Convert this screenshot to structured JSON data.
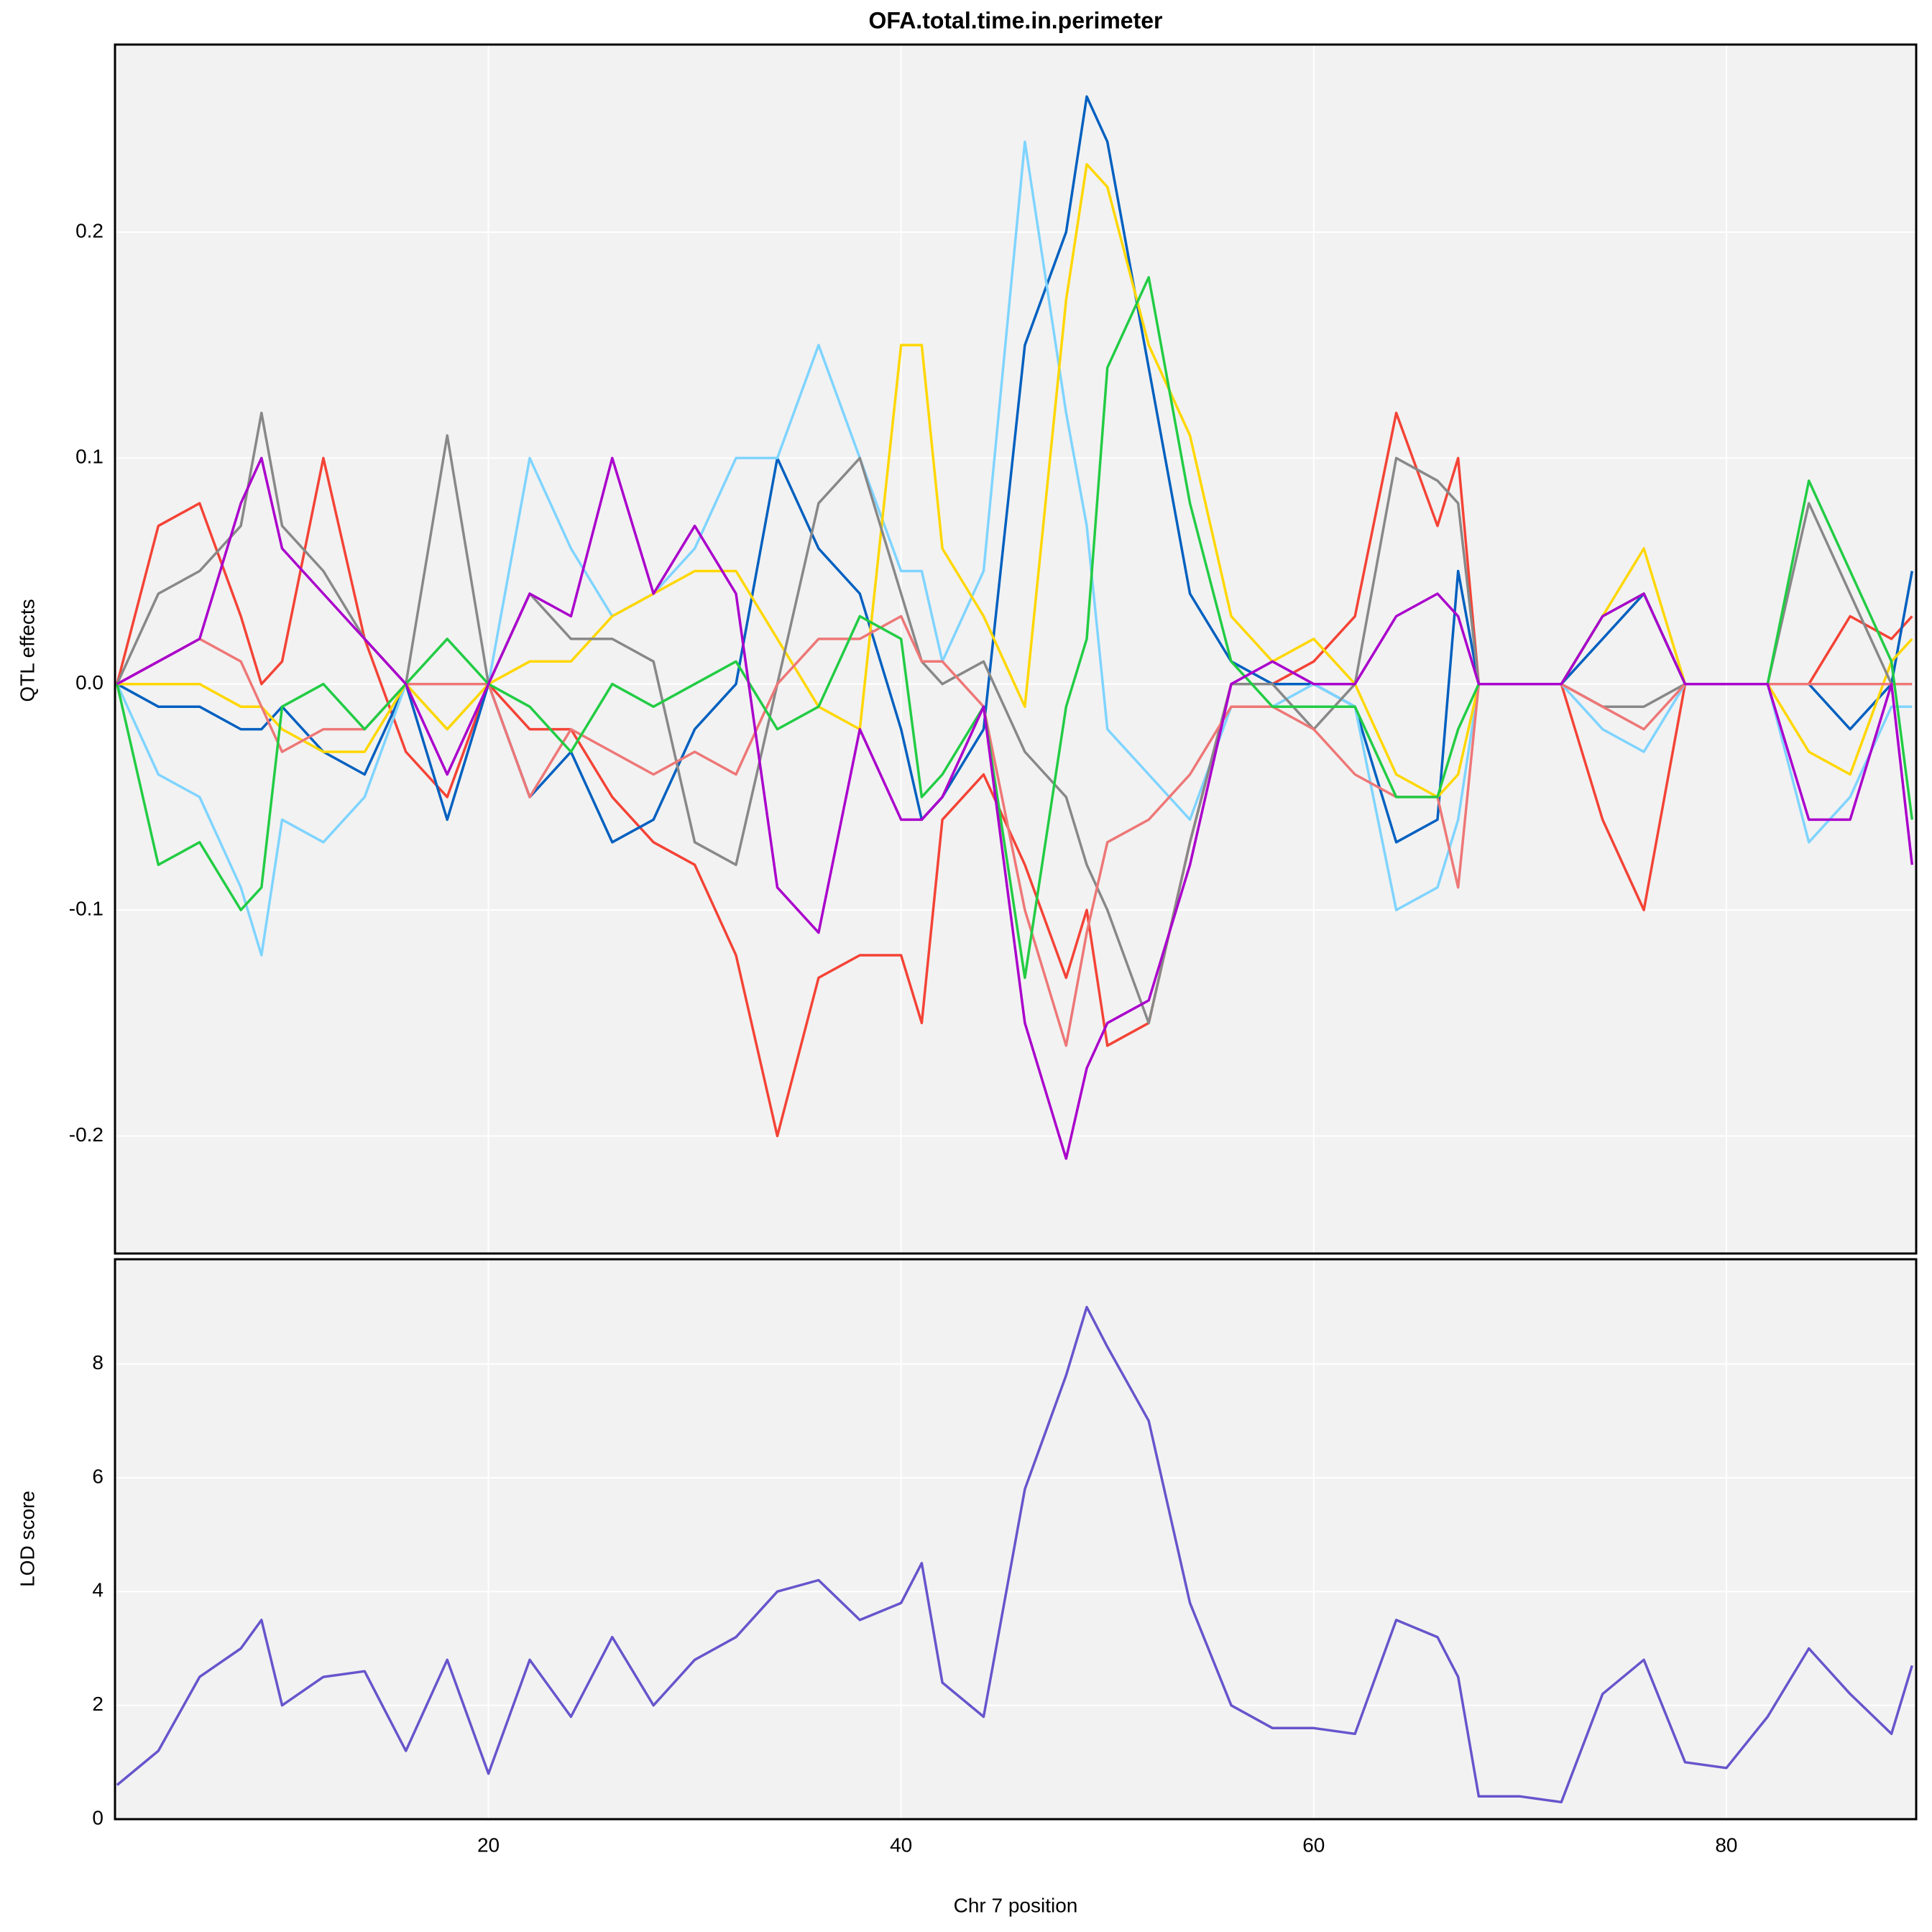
{
  "chart_data": [
    {
      "type": "line",
      "title": "OFA.total.time.in.perimeter",
      "y_label": "QTL effects",
      "x": [
        2,
        4,
        6,
        8,
        9,
        10,
        12,
        14,
        16,
        18,
        20,
        22,
        24,
        26,
        28,
        30,
        32,
        34,
        36,
        38,
        40,
        41,
        42,
        44,
        46,
        48,
        49,
        50,
        52,
        54,
        56,
        58,
        60,
        62,
        64,
        66,
        67,
        68,
        70,
        72,
        74,
        76,
        78,
        80,
        82,
        84,
        86,
        88,
        89
      ],
      "xlim": [
        1.9,
        89.2
      ],
      "ylim": [
        -0.252,
        0.283
      ],
      "yticks": [
        -0.2,
        -0.1,
        {
          "value": 0,
          "label": "0.0"
        },
        0.1,
        0.2
      ],
      "grid": true,
      "series": [
        {
          "color": "#f44336",
          "values": [
            0,
            0.07,
            0.08,
            0.03,
            0.0,
            0.01,
            0.1,
            0.02,
            -0.03,
            -0.05,
            0,
            -0.02,
            -0.02,
            -0.05,
            -0.07,
            -0.08,
            -0.12,
            -0.2,
            -0.13,
            -0.12,
            -0.12,
            -0.15,
            -0.06,
            -0.04,
            -0.08,
            -0.13,
            -0.1,
            -0.16,
            -0.15,
            -0.07,
            0.0,
            0.0,
            0.01,
            0.03,
            0.12,
            0.07,
            0.1,
            0,
            0,
            0,
            -0.06,
            -0.1,
            0,
            0,
            0,
            0.0,
            0.03,
            0.02,
            0.03
          ]
        },
        {
          "color": "#0060c0",
          "values": [
            0,
            -0.01,
            -0.01,
            -0.02,
            -0.02,
            -0.01,
            -0.03,
            -0.04,
            0,
            -0.06,
            0,
            -0.05,
            -0.03,
            -0.07,
            -0.06,
            -0.02,
            0.0,
            0.1,
            0.06,
            0.04,
            -0.02,
            -0.06,
            -0.05,
            -0.02,
            0.15,
            0.2,
            0.26,
            0.24,
            0.14,
            0.04,
            0.01,
            0.0,
            0.0,
            -0.01,
            -0.07,
            -0.06,
            0.05,
            0,
            0,
            0,
            0.02,
            0.04,
            0,
            0,
            0,
            0.0,
            -0.02,
            0.0,
            0.05
          ]
        },
        {
          "color": "#7fd4ff",
          "values": [
            0,
            -0.04,
            -0.05,
            -0.09,
            -0.12,
            -0.06,
            -0.07,
            -0.05,
            0.0,
            -0.02,
            0,
            0.1,
            0.06,
            0.03,
            0.04,
            0.06,
            0.1,
            0.1,
            0.15,
            0.1,
            0.05,
            0.05,
            0.01,
            0.05,
            0.24,
            0.12,
            0.07,
            -0.02,
            -0.04,
            -0.06,
            -0.01,
            -0.01,
            0.0,
            -0.01,
            -0.1,
            -0.09,
            -0.06,
            0,
            0,
            0,
            -0.02,
            -0.03,
            0,
            0,
            0,
            -0.07,
            -0.05,
            -0.01,
            -0.01
          ]
        },
        {
          "color": "#ffd700",
          "values": [
            0,
            0,
            0.0,
            -0.01,
            -0.01,
            -0.02,
            -0.03,
            -0.03,
            0,
            -0.02,
            0,
            0.01,
            0.01,
            0.03,
            0.04,
            0.05,
            0.05,
            0.02,
            -0.01,
            -0.02,
            0.15,
            0.15,
            0.06,
            0.03,
            -0.01,
            0.17,
            0.23,
            0.22,
            0.15,
            0.11,
            0.03,
            0.01,
            0.02,
            0.0,
            -0.04,
            -0.05,
            -0.04,
            0,
            0,
            0,
            0.03,
            0.06,
            0,
            0,
            0,
            -0.03,
            -0.04,
            0.01,
            0.02
          ]
        },
        {
          "color": "#888888",
          "values": [
            0,
            0.04,
            0.05,
            0.07,
            0.12,
            0.07,
            0.05,
            0.02,
            0,
            0.11,
            0,
            0.04,
            0.02,
            0.02,
            0.01,
            -0.07,
            -0.08,
            0.0,
            0.08,
            0.1,
            0.04,
            0.01,
            0.0,
            0.01,
            -0.03,
            -0.05,
            -0.08,
            -0.1,
            -0.15,
            -0.07,
            0.0,
            0.0,
            -0.02,
            0.0,
            0.1,
            0.09,
            0.08,
            0,
            0,
            0,
            -0.01,
            -0.01,
            0,
            0,
            0,
            0.08,
            0.04,
            0.0,
            0.0
          ]
        },
        {
          "color": "#ee7777",
          "values": [
            0,
            0.01,
            0.02,
            0.01,
            -0.01,
            -0.03,
            -0.02,
            -0.02,
            0,
            0.0,
            0,
            -0.05,
            -0.02,
            -0.03,
            -0.04,
            -0.03,
            -0.04,
            0.0,
            0.02,
            0.02,
            0.03,
            0.01,
            0.01,
            -0.01,
            -0.1,
            -0.16,
            -0.11,
            -0.07,
            -0.06,
            -0.04,
            -0.01,
            -0.01,
            -0.02,
            -0.04,
            -0.05,
            -0.05,
            -0.09,
            0,
            0,
            0,
            -0.01,
            -0.02,
            0,
            0,
            0,
            0.0,
            0.0,
            0.0,
            0.0
          ]
        },
        {
          "color": "#22cc44",
          "values": [
            0,
            -0.08,
            -0.07,
            -0.1,
            -0.09,
            -0.01,
            0.0,
            -0.02,
            0,
            0.02,
            0,
            -0.01,
            -0.03,
            0.0,
            -0.01,
            0.0,
            0.01,
            -0.02,
            -0.01,
            0.03,
            0.02,
            -0.05,
            -0.04,
            -0.01,
            -0.13,
            -0.01,
            0.02,
            0.14,
            0.18,
            0.08,
            0.01,
            -0.01,
            -0.01,
            -0.01,
            -0.05,
            -0.05,
            -0.02,
            0,
            0,
            0,
            0.03,
            0.04,
            0,
            0,
            0,
            0.09,
            0.05,
            0.01,
            -0.06
          ]
        },
        {
          "color": "#aa00cc",
          "values": [
            0,
            0.01,
            0.02,
            0.08,
            0.1,
            0.06,
            0.04,
            0.02,
            0,
            -0.04,
            0,
            0.04,
            0.03,
            0.1,
            0.04,
            0.07,
            0.04,
            -0.09,
            -0.11,
            -0.02,
            -0.06,
            -0.06,
            -0.05,
            -0.01,
            -0.15,
            -0.21,
            -0.17,
            -0.15,
            -0.14,
            -0.08,
            0.0,
            0.01,
            0.0,
            0.0,
            0.03,
            0.04,
            0.03,
            0,
            0,
            0,
            0.03,
            0.04,
            0,
            0,
            0,
            -0.06,
            -0.06,
            0.0,
            -0.08
          ]
        }
      ]
    },
    {
      "type": "line",
      "y_label": "LOD score",
      "x_label": "Chr 7 position",
      "x": [
        2,
        4,
        6,
        8,
        9,
        10,
        12,
        14,
        16,
        18,
        20,
        22,
        24,
        26,
        28,
        30,
        32,
        34,
        36,
        38,
        40,
        41,
        42,
        44,
        46,
        48,
        49,
        50,
        52,
        54,
        56,
        58,
        60,
        62,
        64,
        66,
        67,
        68,
        70,
        72,
        74,
        76,
        78,
        80,
        82,
        84,
        86,
        88,
        89
      ],
      "xlim": [
        1.9,
        89.2
      ],
      "ylim": [
        0,
        9.84
      ],
      "yticks": [
        0,
        2,
        4,
        6,
        8
      ],
      "xticks": [
        20,
        40,
        60,
        80
      ],
      "grid": true,
      "series": [
        {
          "color": "#6655cc",
          "values": [
            0.6,
            1.2,
            2.5,
            3.0,
            3.5,
            2.0,
            2.5,
            2.6,
            1.2,
            2.8,
            0.8,
            2.8,
            1.8,
            3.2,
            2.0,
            2.8,
            3.2,
            4.0,
            4.2,
            3.5,
            3.8,
            4.5,
            2.4,
            1.8,
            5.8,
            7.8,
            9.0,
            8.3,
            7.0,
            3.8,
            2.0,
            1.6,
            1.6,
            1.5,
            3.5,
            3.2,
            2.5,
            0.4,
            0.4,
            0.3,
            2.2,
            2.8,
            1.0,
            0.9,
            1.8,
            3.0,
            2.2,
            1.5,
            2.7
          ]
        }
      ]
    }
  ]
}
